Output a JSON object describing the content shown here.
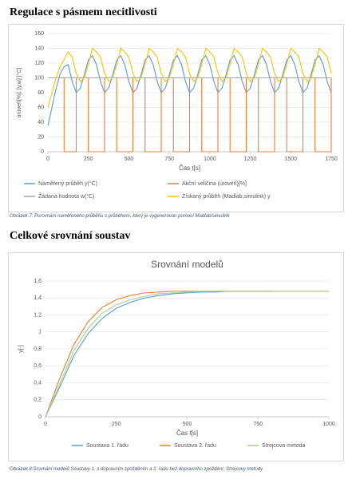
{
  "headings": [
    "Regulace s pásmem necitlivosti",
    "Celkové srovnání soustav"
  ],
  "captions": [
    "Obrázek 7: Porovnání naměřeného průběhu s průběhem, který je vygenerován pomocí Madlab/simulink",
    "Obrázek 8:Srovnání modelů Soustavy 1. s dopravním zpožděním a 2. řádu bez dopravního zpoždění, Strejcovy metody"
  ],
  "chart_data": [
    {
      "type": "line",
      "xlabel": "Čas t[s]",
      "ylabel": "úroveň[%], [y,w] [°C]",
      "grid": true,
      "xlim": [
        0,
        1750
      ],
      "xticks": [
        0,
        250,
        500,
        750,
        1000,
        1250,
        1500,
        1750
      ],
      "ylim": [
        0,
        160
      ],
      "yticks": [
        0,
        20,
        40,
        60,
        80,
        100,
        120,
        140,
        160
      ],
      "x": [
        0,
        25,
        50,
        75,
        100,
        125,
        150,
        175,
        200,
        225,
        250,
        275,
        300,
        325,
        350,
        375,
        400,
        425,
        450,
        475,
        500,
        525,
        550,
        575,
        600,
        625,
        650,
        675,
        700,
        725,
        750,
        775,
        800,
        825,
        850,
        875,
        900,
        925,
        950,
        975,
        1000,
        1025,
        1050,
        1075,
        1100,
        1125,
        1150,
        1175,
        1200,
        1225,
        1250,
        1275,
        1300,
        1325,
        1350,
        1375,
        1400,
        1425,
        1450,
        1475,
        1500,
        1525,
        1550,
        1575,
        1600,
        1625,
        1650,
        1675,
        1700,
        1725,
        1750
      ],
      "series": [
        {
          "name": "Naměřený průběh  y(°C)",
          "color": "#5b9bd5",
          "values": [
            35,
            60,
            85,
            105,
            115,
            118,
            95,
            80,
            86,
            104,
            124,
            130,
            118,
            95,
            80,
            86,
            104,
            124,
            130,
            118,
            95,
            80,
            86,
            104,
            124,
            130,
            118,
            95,
            80,
            86,
            104,
            124,
            130,
            118,
            95,
            80,
            86,
            104,
            124,
            130,
            118,
            95,
            80,
            86,
            104,
            124,
            130,
            118,
            95,
            80,
            86,
            104,
            124,
            130,
            118,
            95,
            80,
            86,
            104,
            124,
            130,
            118,
            95,
            80,
            86,
            104,
            124,
            130,
            118,
            95,
            80
          ]
        },
        {
          "name": "Akční veličina (úroveň)[%]",
          "color": "#ed7d31",
          "step": true,
          "values": [
            100,
            100,
            100,
            100,
            0,
            0,
            0,
            100,
            100,
            100,
            0,
            0,
            0,
            0,
            100,
            100,
            100,
            0,
            0,
            0,
            0,
            100,
            100,
            100,
            0,
            0,
            0,
            0,
            100,
            100,
            100,
            0,
            0,
            0,
            0,
            100,
            100,
            100,
            0,
            0,
            0,
            0,
            100,
            100,
            100,
            0,
            0,
            0,
            0,
            100,
            100,
            100,
            0,
            0,
            0,
            0,
            100,
            100,
            100,
            0,
            0,
            0,
            0,
            100,
            100,
            100,
            0,
            0,
            0,
            0,
            100
          ]
        },
        {
          "name": "Žádaná hodnota  w(°C)",
          "color": "#a5a5a5",
          "values": [
            100,
            100,
            100,
            100,
            100,
            100,
            100,
            100,
            100,
            100,
            100,
            100,
            100,
            100,
            100,
            100,
            100,
            100,
            100,
            100,
            100,
            100,
            100,
            100,
            100,
            100,
            100,
            100,
            100,
            100,
            100,
            100,
            100,
            100,
            100,
            100,
            100,
            100,
            100,
            100,
            100,
            100,
            100,
            100,
            100,
            100,
            100,
            100,
            100,
            100,
            100,
            100,
            100,
            100,
            100,
            100,
            100,
            100,
            100,
            100,
            100,
            100,
            100,
            100,
            100,
            100,
            100,
            100,
            100,
            100,
            100
          ]
        },
        {
          "name": "Získaný průběh  (Madlab,simulink)  y",
          "color": "#ffc000",
          "values": [
            60,
            80,
            100,
            115,
            125,
            135,
            128,
            106,
            95,
            100,
            118,
            140,
            135,
            128,
            106,
            95,
            100,
            118,
            140,
            135,
            128,
            106,
            95,
            100,
            118,
            140,
            135,
            128,
            106,
            95,
            100,
            118,
            140,
            135,
            128,
            106,
            95,
            100,
            118,
            140,
            135,
            128,
            106,
            95,
            100,
            118,
            140,
            135,
            128,
            106,
            95,
            100,
            118,
            140,
            135,
            128,
            106,
            95,
            100,
            118,
            140,
            135,
            128,
            106,
            95,
            100,
            118,
            140,
            135,
            128,
            106
          ]
        }
      ]
    },
    {
      "type": "line",
      "title": "Srovnání modelů",
      "xlabel": "Čas t[s]",
      "ylabel": "y[-]",
      "grid": true,
      "xlim": [
        0,
        1000
      ],
      "xticks": [
        0,
        250,
        500,
        750,
        1000
      ],
      "ylim": [
        0,
        1.6
      ],
      "yticks": [
        0,
        {
          "value": 0.2,
          "label": "0,2"
        },
        {
          "value": 0.4,
          "label": "0,4"
        },
        {
          "value": 0.6,
          "label": "0,6"
        },
        {
          "value": 0.8,
          "label": "0,8"
        },
        1,
        {
          "value": 1.2,
          "label": "1,2"
        },
        {
          "value": 1.4,
          "label": "1,4"
        },
        {
          "value": 1.6,
          "label": "1,6"
        }
      ],
      "x": [
        0,
        50,
        100,
        150,
        200,
        250,
        300,
        350,
        400,
        450,
        500,
        550,
        600,
        650,
        700,
        750,
        800,
        850,
        900,
        950,
        1000
      ],
      "series": [
        {
          "name": "Soustava 1. řádu",
          "color": "#5b9bd5",
          "values": [
            0,
            0.35,
            0.72,
            0.98,
            1.16,
            1.28,
            1.35,
            1.4,
            1.43,
            1.45,
            1.46,
            1.47,
            1.47,
            1.48,
            1.48,
            1.48,
            1.48,
            null,
            null,
            null,
            null
          ]
        },
        {
          "name": "Soustava 2. řádu",
          "color": "#ed7d31",
          "values": [
            0,
            0.45,
            0.85,
            1.12,
            1.29,
            1.38,
            1.43,
            1.46,
            1.47,
            1.48,
            1.48,
            1.48,
            1.48,
            1.48,
            1.48,
            1.48,
            1.48,
            1.48,
            1.48,
            1.48,
            1.48
          ]
        },
        {
          "name": "Strejcova metoda",
          "color": "#a9d18e",
          "values": [
            0,
            0.38,
            0.78,
            1.04,
            1.22,
            1.32,
            1.38,
            1.42,
            1.45,
            1.46,
            1.47,
            1.48,
            1.48,
            1.48,
            1.48,
            1.48,
            1.48,
            1.48,
            1.48,
            1.48,
            1.48
          ]
        }
      ]
    }
  ]
}
